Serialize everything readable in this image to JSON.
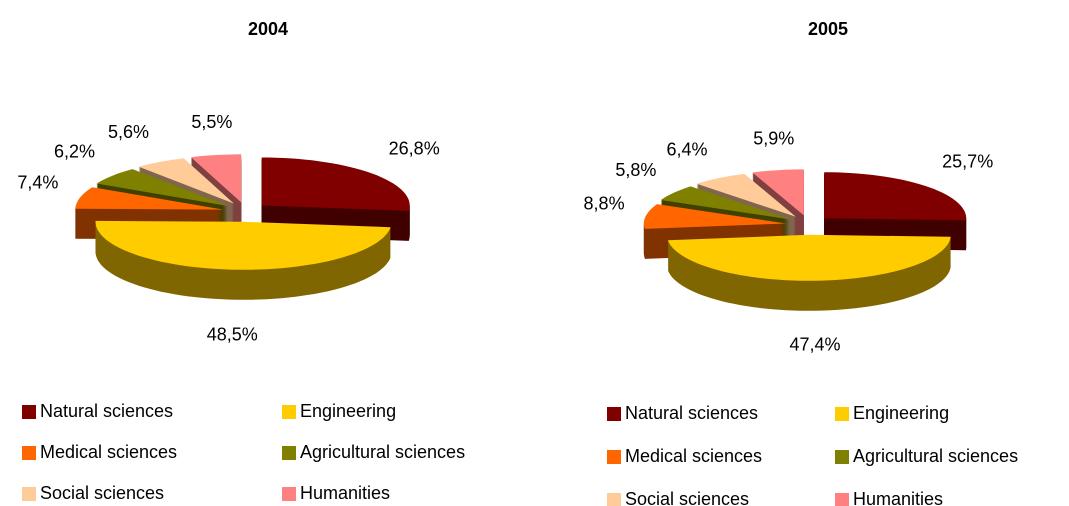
{
  "chart_data": [
    {
      "type": "pie",
      "title": "2004",
      "categories": [
        "Natural sciences",
        "Engineering",
        "Medical sciences",
        "Agricultural sciences",
        "Social sciences",
        "Humanities"
      ],
      "values": [
        26.8,
        48.5,
        7.4,
        6.2,
        5.6,
        5.5
      ],
      "value_labels": [
        "26,8%",
        "48,5%",
        "7,4%",
        "6,2%",
        "5,6%",
        "5,5%"
      ],
      "colors": [
        "#800000",
        "#ffcc00",
        "#ff6600",
        "#808000",
        "#ffcc99",
        "#ff8080"
      ]
    },
    {
      "type": "pie",
      "title": "2005",
      "categories": [
        "Natural sciences",
        "Engineering",
        "Medical sciences",
        "Agricultural sciences",
        "Social sciences",
        "Humanities"
      ],
      "values": [
        25.7,
        47.4,
        8.8,
        5.8,
        6.4,
        5.9
      ],
      "value_labels": [
        "25,7%",
        "47,4%",
        "8,8%",
        "5,8%",
        "6,4%",
        "5,9%"
      ],
      "colors": [
        "#800000",
        "#ffcc00",
        "#ff6600",
        "#808000",
        "#ffcc99",
        "#ff8080"
      ]
    }
  ]
}
